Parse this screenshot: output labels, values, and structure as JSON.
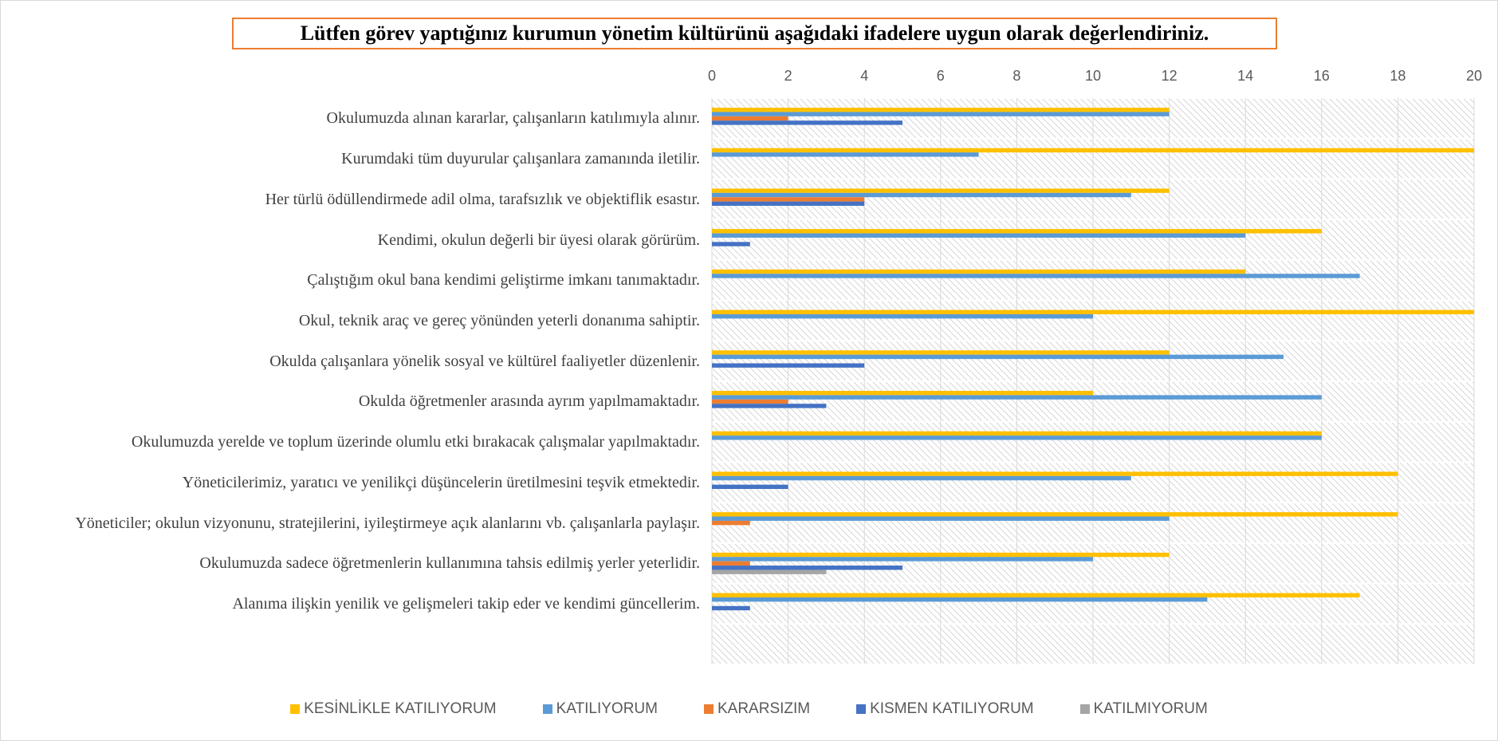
{
  "chart_data": {
    "type": "hbar",
    "title": "Lütfen görev yaptığınız kurumun yönetim kültürünü aşağıdaki ifadelere uygun olarak değerlendiriniz.",
    "categories": [
      "Okulumuzda alınan kararlar, çalışanların katılımıyla alınır.",
      "Kurumdaki tüm duyurular çalışanlara zamanında iletilir.",
      "Her türlü ödüllendirmede adil olma, tarafsızlık ve objektiflik esastır.",
      "Kendimi, okulun değerli bir üyesi olarak görürüm.",
      "Çalıştığım okul bana kendimi geliştirme imkanı tanımaktadır.",
      "Okul, teknik araç ve gereç yönünden yeterli donanıma sahiptir.",
      "Okulda çalışanlara yönelik sosyal ve kültürel faaliyetler düzenlenir.",
      "Okulda öğretmenler arasında ayrım yapılmamaktadır.",
      "Okulumuzda yerelde ve toplum üzerinde olumlu etki bırakacak çalışmalar yapılmaktadır.",
      "Yöneticilerimiz, yaratıcı ve yenilikçi düşüncelerin üretilmesini teşvik etmektedir.",
      "Yöneticiler; okulun vizyonunu, stratejilerini, iyileştirmeye açık alanlarını vb. çalışanlarla paylaşır.",
      "Okulumuzda sadece öğretmenlerin kullanımına tahsis edilmiş yerler yeterlidir.",
      "Alanıma ilişkin yenilik ve gelişmeleri takip eder ve kendimi güncellerim."
    ],
    "series": [
      {
        "name": "KESİNLİKLE KATILIYORUM",
        "color": "#ffc000",
        "values": [
          12,
          20,
          12,
          16,
          14,
          20,
          12,
          10,
          16,
          18,
          18,
          12,
          17
        ]
      },
      {
        "name": "KATILIYORUM",
        "color": "#5b9bd5",
        "values": [
          12,
          7,
          11,
          14,
          17,
          10,
          15,
          16,
          16,
          11,
          12,
          10,
          13
        ]
      },
      {
        "name": "KARARSIZIM",
        "color": "#ed7d31",
        "values": [
          2,
          0,
          4,
          0,
          0,
          0,
          0,
          2,
          0,
          0,
          1,
          1,
          0
        ]
      },
      {
        "name": "KISMEN KATILIYORUM",
        "color": "#4472c4",
        "values": [
          5,
          0,
          4,
          1,
          0,
          0,
          4,
          3,
          0,
          2,
          0,
          5,
          1
        ]
      },
      {
        "name": "KATILMIYORUM",
        "color": "#a5a5a5",
        "values": [
          0,
          0,
          0,
          0,
          0,
          0,
          0,
          0,
          0,
          0,
          0,
          3,
          0
        ]
      }
    ],
    "xlim": [
      0,
      20
    ],
    "xticks": [
      0,
      2,
      4,
      6,
      8,
      10,
      12,
      14,
      16,
      18,
      20
    ],
    "grid": true,
    "legend": "bottom"
  }
}
